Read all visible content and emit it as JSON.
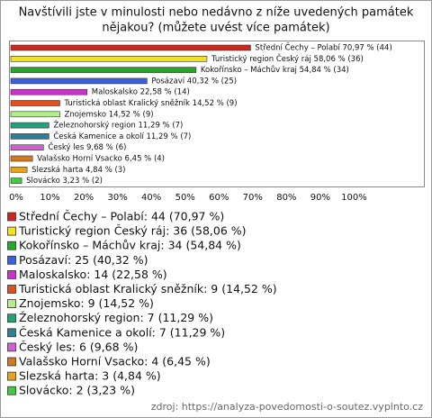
{
  "chart_data": {
    "type": "hbar",
    "title": [
      "Navštívili jste v minulosti nebo nedávno z níže uvedených památek",
      "nějakou? (můžete uvést více památek)"
    ],
    "values": [
      70.97,
      58.06,
      54.84,
      40.32,
      22.58,
      14.52,
      14.52,
      11.29,
      11.29,
      9.68,
      6.45,
      4.84,
      3.23
    ],
    "value_labels": [
      "Střední Čechy – Polabí 70,97 % (44)",
      "Turistický region Český ráj 58,06 % (36)",
      "Kokořínsko – Máchův kraj 54,84 % (34)",
      "Posázaví 40,32 % (25)",
      "Maloskalsko 22,58 % (14)",
      "Turistická oblast Kralický sněžník 14,52 % (9)",
      "Znojemsko 14,52 % (9)",
      "Železnohorský region 11,29 % (7)",
      "Česká Kamenice a okolí 11,29 % (7)",
      "Český les 9,68 % (6)",
      "Valašsko Horní Vsacko 6,45 % (4)",
      "Slezská harta 4,84 % (3)",
      "Slovácko 3,23 % (2)"
    ],
    "legend": [
      "Střední Čechy – Polabí: 44 (70,97 %)",
      "Turistický region Český ráj: 36 (58,06 %)",
      "Kokořínsko – Máchův kraj: 34 (54,84 %)",
      "Posázaví: 25 (40,32 %)",
      "Maloskalsko: 14 (22,58 %)",
      "Turistická oblast Kralický sněžník: 9 (14,52 %)",
      "Znojemsko: 9 (14,52 %)",
      "Železnohorský region: 7 (11,29 %)",
      "Česká Kamenice a okolí: 7 (11,29 %)",
      "Český les: 6 (9,68 %)",
      "Valašsko Horní Vsacko: 4 (6,45 %)",
      "Slezská harta: 3 (4,84 %)",
      "Slovácko: 2 (3,23 %)"
    ],
    "colors": [
      "#c8281e",
      "#f2e21c",
      "#22aa22",
      "#3a5fe0",
      "#c832c8",
      "#e0501e",
      "#b4ee8c",
      "#22a07a",
      "#2e7f96",
      "#d060d0",
      "#d2781e",
      "#e6a41e",
      "#46c846"
    ],
    "xlim": [
      0,
      122
    ],
    "xticks": [
      {
        "value": 0,
        "label": "0%"
      },
      {
        "value": 10,
        "label": "10%"
      },
      {
        "value": 20,
        "label": "20%"
      },
      {
        "value": 30,
        "label": "30%"
      },
      {
        "value": 40,
        "label": "40%"
      },
      {
        "value": 50,
        "label": "50%"
      },
      {
        "value": 60,
        "label": "60%"
      },
      {
        "value": 70,
        "label": "70%"
      },
      {
        "value": 80,
        "label": "80%"
      },
      {
        "value": 90,
        "label": "90%"
      },
      {
        "value": 100,
        "label": "100%"
      }
    ],
    "grid": false,
    "source": "zdroj: https://analyza-povedomosti-o-soutez.vyplnto.cz"
  }
}
